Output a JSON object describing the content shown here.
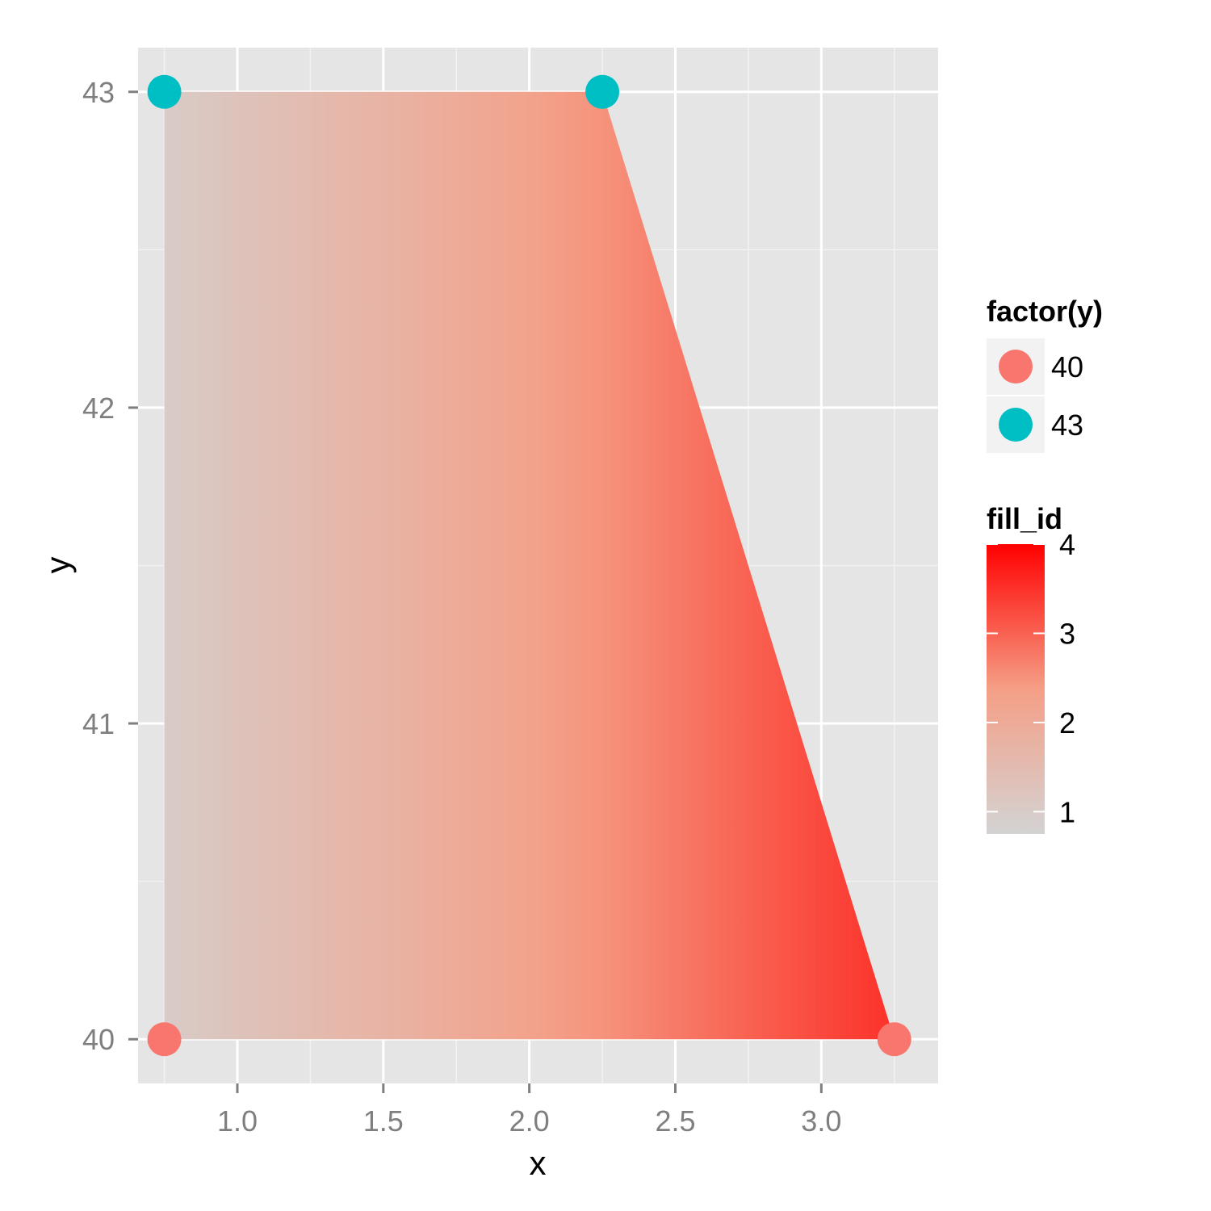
{
  "chart_data": {
    "type": "area",
    "xlabel": "x",
    "ylabel": "y",
    "xlim": [
      0.66,
      3.4
    ],
    "ylim": [
      39.86,
      43.14
    ],
    "x_ticks": [
      1.0,
      1.5,
      2.0,
      2.5,
      3.0
    ],
    "x_tick_labels": [
      "1.0",
      "1.5",
      "2.0",
      "2.5",
      "3.0"
    ],
    "y_ticks": [
      40,
      41,
      42,
      43
    ],
    "y_tick_labels": [
      "40",
      "41",
      "42",
      "43"
    ],
    "grid": true,
    "polygon": {
      "vertices": [
        {
          "x": 0.75,
          "y": 40
        },
        {
          "x": 0.75,
          "y": 43
        },
        {
          "x": 2.25,
          "y": 43
        },
        {
          "x": 3.25,
          "y": 40
        }
      ],
      "fill_gradient": {
        "along": "x",
        "from_x": 0.75,
        "to_x": 3.25,
        "from_fill_id": 1,
        "to_fill_id": 3.5
      }
    },
    "points": [
      {
        "x": 0.75,
        "y": 43,
        "group": "43"
      },
      {
        "x": 2.25,
        "y": 43,
        "group": "43"
      },
      {
        "x": 0.75,
        "y": 40,
        "group": "40"
      },
      {
        "x": 3.25,
        "y": 40,
        "group": "40"
      }
    ],
    "legend_position": "right",
    "color_legend": {
      "title": "factor(y)",
      "entries": [
        {
          "label": "40",
          "color": "#f8766d"
        },
        {
          "label": "43",
          "color": "#00bfc4"
        }
      ]
    },
    "fill_legend": {
      "title": "fill_id",
      "range": [
        0.75,
        4.0
      ],
      "ticks": [
        1,
        2,
        3,
        4
      ],
      "tick_labels": [
        "1",
        "2",
        "3",
        "4"
      ],
      "low_color": "#d3d3d3",
      "mid_color": "#f59f86",
      "high_color": "#ff0000"
    },
    "colors": {
      "panel_background": "#e5e5e5",
      "grid_major": "#ffffff",
      "grid_minor": "#f2f2f2",
      "axis_text": "#7f7f7f",
      "legend_key_background": "#f2f2f2"
    }
  }
}
